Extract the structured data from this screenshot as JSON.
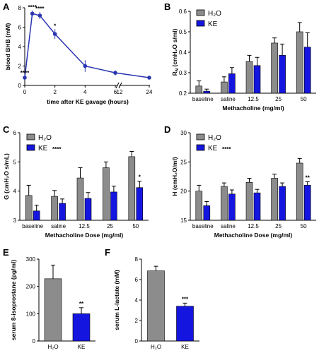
{
  "colors": {
    "h2o": "#8c8c8c",
    "ke": "#1515e0",
    "line": "#2a35b0"
  },
  "legend": {
    "h2o": "H₂O",
    "ke": "KE"
  },
  "chart_data": [
    {
      "panel": "A",
      "type": "line",
      "xlabel": "time after KE gavage (hours)",
      "ylabel": "blood BHB (mM)",
      "xticks": [
        "0",
        "2",
        "4",
        "6",
        "12",
        "24"
      ],
      "yticks": [
        "0",
        "2",
        "4",
        "6",
        "8"
      ],
      "ylim": [
        0,
        8
      ],
      "x_break": [
        6,
        12
      ],
      "x": [
        0,
        0.5,
        1,
        2,
        4,
        6,
        24
      ],
      "y": [
        0.8,
        7.4,
        7.2,
        5.3,
        2.0,
        1.3,
        0.8
      ],
      "err": [
        0.15,
        0.3,
        0.35,
        0.5,
        0.6,
        0.25,
        0.1
      ],
      "annotations": [
        "****",
        "****",
        "****",
        "*",
        "",
        "",
        ""
      ]
    },
    {
      "panel": "B",
      "type": "bar",
      "xlabel": "Methacholine (mg/ml)",
      "ylabel": "R_N (cmH₂O s/ml)",
      "categories": [
        "baseline",
        "saline",
        "12.5",
        "25",
        "50"
      ],
      "yticks": [
        "0.2",
        "0.3",
        "0.4",
        "0.5",
        "0.6"
      ],
      "ylim": [
        0.2,
        0.6
      ],
      "series": [
        {
          "name": "H₂O",
          "values": [
            0.235,
            0.255,
            0.355,
            0.445,
            0.5
          ],
          "err": [
            0.025,
            0.025,
            0.03,
            0.025,
            0.045
          ]
        },
        {
          "name": "KE",
          "values": [
            0.21,
            0.295,
            0.335,
            0.385,
            0.425
          ],
          "err": [
            0.01,
            0.03,
            0.04,
            0.055,
            0.07
          ]
        }
      ],
      "legend_stars": ""
    },
    {
      "panel": "C",
      "type": "bar",
      "xlabel": "Methacholine Dose (mg/ml)",
      "ylabel": "G (cmH₂O s/mL)",
      "categories": [
        "baseline",
        "saline",
        "12.5",
        "25",
        "50"
      ],
      "yticks": [
        "3",
        "4",
        "5",
        "6"
      ],
      "ylim": [
        3,
        6
      ],
      "series": [
        {
          "name": "H₂O",
          "values": [
            3.85,
            3.82,
            4.45,
            4.8,
            5.18
          ],
          "err": [
            0.35,
            0.2,
            0.35,
            0.2,
            0.18
          ]
        },
        {
          "name": "KE",
          "values": [
            3.32,
            3.58,
            3.75,
            3.97,
            4.12
          ],
          "err": [
            0.2,
            0.15,
            0.2,
            0.2,
            0.22
          ]
        }
      ],
      "legend_stars": "****",
      "stars": [
        "",
        "",
        "",
        "",
        "*"
      ]
    },
    {
      "panel": "D",
      "type": "bar",
      "xlabel": "Methacholine Dose (mg/ml)",
      "ylabel": "H (cmH₂O/ml)",
      "categories": [
        "baseline",
        "saline",
        "12.5",
        "25",
        "50"
      ],
      "yticks": [
        "15",
        "20",
        "25",
        "30"
      ],
      "ylim": [
        15,
        30
      ],
      "series": [
        {
          "name": "H₂O",
          "values": [
            20.0,
            20.8,
            21.5,
            22.2,
            24.8
          ],
          "err": [
            1.0,
            0.6,
            0.7,
            0.7,
            0.8
          ]
        },
        {
          "name": "KE",
          "values": [
            17.5,
            19.5,
            19.7,
            20.8,
            21.0
          ],
          "err": [
            0.7,
            0.7,
            0.6,
            0.6,
            0.6
          ]
        }
      ],
      "legend_stars": "****",
      "stars": [
        "",
        "",
        "",
        "",
        "**"
      ]
    },
    {
      "panel": "E",
      "type": "bar",
      "ylabel": "serum 8-isoprostane (pg/ml)",
      "categories": [
        "H₂O",
        "KE"
      ],
      "yticks": [
        "0",
        "100",
        "200",
        "300"
      ],
      "ylim": [
        0,
        300
      ],
      "values": [
        228,
        100
      ],
      "err": [
        50,
        22
      ],
      "stars": [
        "",
        "**"
      ]
    },
    {
      "panel": "F",
      "type": "bar",
      "ylabel": "serum L-lactate (mM)",
      "categories": [
        "H₂O",
        "KE"
      ],
      "yticks": [
        "0",
        "2",
        "4",
        "6",
        "8"
      ],
      "ylim": [
        0,
        8
      ],
      "values": [
        6.85,
        3.4
      ],
      "err": [
        0.45,
        0.3
      ],
      "stars": [
        "",
        "***"
      ]
    }
  ]
}
